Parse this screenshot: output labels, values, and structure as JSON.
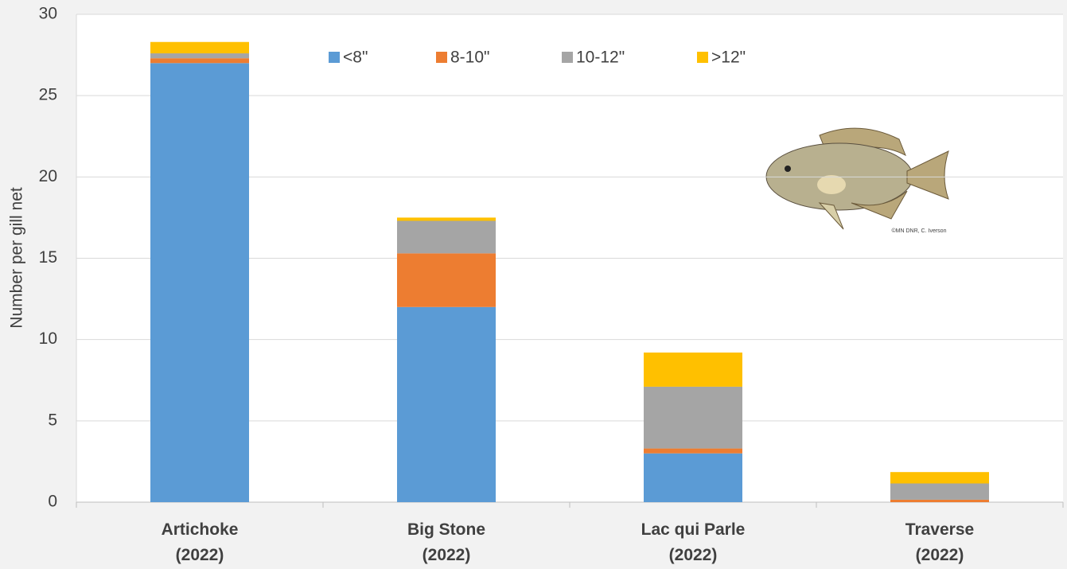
{
  "chart_data": {
    "type": "stacked_bar",
    "y_label": "Number per gill net",
    "categories": [
      "Artichoke (2022)",
      "Big Stone (2022)",
      "Lac qui Parle (2022)",
      "Traverse (2022)"
    ],
    "series": [
      {
        "name": "<8\"",
        "color": "#5b9bd5",
        "values": [
          27.0,
          12.0,
          3.0,
          0
        ]
      },
      {
        "name": "8-10\"",
        "color": "#ed7d31",
        "values": [
          0.3,
          3.3,
          0.3,
          0.15
        ]
      },
      {
        "name": "10-12\"",
        "color": "#a5a5a5",
        "values": [
          0.3,
          2.0,
          3.8,
          1.0
        ]
      },
      {
        "name": ">12\"",
        "color": "#ffc000",
        "values": [
          0.7,
          0.2,
          2.1,
          0.7
        ]
      }
    ],
    "ylim": [
      0,
      30
    ],
    "yticks": [
      0,
      5,
      10,
      15,
      20,
      25,
      30
    ],
    "grid": true,
    "legend": "top",
    "image_credit": "©MN DNR, C. Iverson"
  }
}
